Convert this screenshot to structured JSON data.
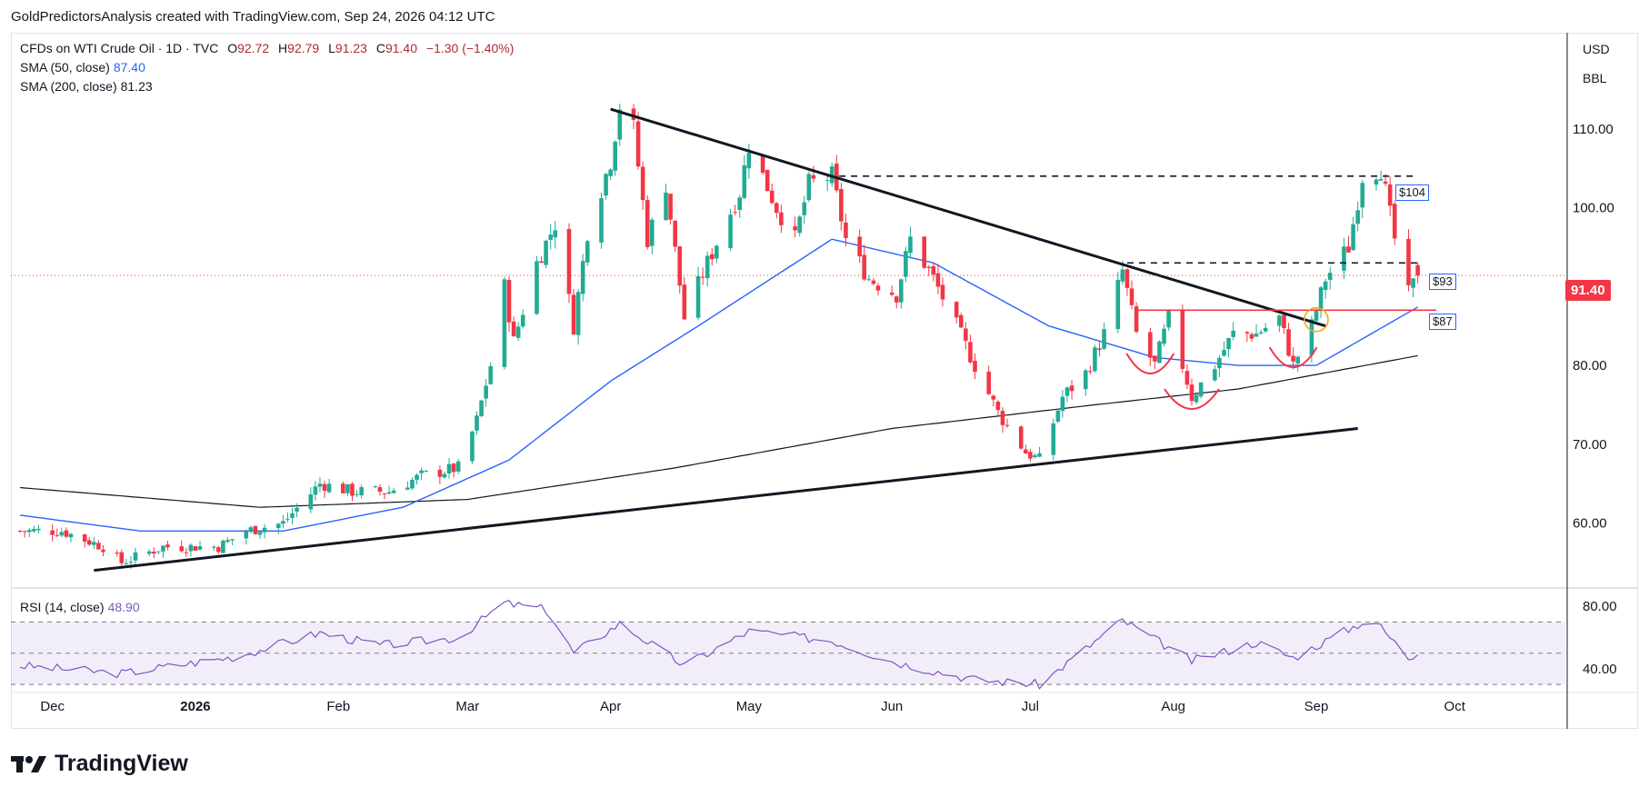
{
  "credit": "GoldPredictorsAnalysis created with TradingView.com, Sep 24, 2026 04:12 UTC",
  "legend": {
    "symbol": "CFDs on WTI Crude Oil · 1D · TVC",
    "o_label": "O",
    "o": "92.72",
    "h_label": "H",
    "h": "92.79",
    "l_label": "L",
    "l": "91.23",
    "c_label": "C",
    "c": "91.40",
    "change": "−1.30 (−1.40%)",
    "sma50_label": "SMA (50, close)",
    "sma50": "87.40",
    "sma200_label": "SMA (200, close)",
    "sma200": "81.23",
    "rsi_label": "RSI (14, close)",
    "rsi": "48.90"
  },
  "price_scale": {
    "currency": "USD",
    "unit": "BBL",
    "last_price": "91.40"
  },
  "tags": {
    "t104": "$104",
    "t93": "$93",
    "t87": "$87"
  },
  "brand": "TradingView",
  "colors": {
    "up": "#22ab94",
    "down": "#f23645",
    "sma50": "#2962ff",
    "sma200": "#131722",
    "rsi": "#7e57c2",
    "annotation": "#f23645"
  },
  "chart_data": [
    {
      "type": "candlestick",
      "title": "CFDs on WTI Crude Oil · 1D · TVC",
      "x_labels": [
        "Dec",
        "2026",
        "Feb",
        "Mar",
        "Apr",
        "May",
        "Jun",
        "Jul",
        "Aug",
        "Sep",
        "Oct"
      ],
      "y_ticks": [
        60,
        70,
        80,
        90,
        100,
        110
      ],
      "ylim": [
        52,
        120
      ],
      "grid": false,
      "keypoints_close": [
        {
          "x": "2025-11-24",
          "y": 59
        },
        {
          "x": "2025-12-03",
          "y": 59
        },
        {
          "x": "2025-12-12",
          "y": 57
        },
        {
          "x": "2025-12-16",
          "y": 55
        },
        {
          "x": "2025-12-25",
          "y": 57
        },
        {
          "x": "2026-01-06",
          "y": 57
        },
        {
          "x": "2026-01-12",
          "y": 59
        },
        {
          "x": "2026-01-20",
          "y": 60
        },
        {
          "x": "2026-01-28",
          "y": 65
        },
        {
          "x": "2026-02-04",
          "y": 64
        },
        {
          "x": "2026-02-12",
          "y": 64
        },
        {
          "x": "2026-02-19",
          "y": 66
        },
        {
          "x": "2026-02-27",
          "y": 67
        },
        {
          "x": "2026-03-03",
          "y": 73
        },
        {
          "x": "2026-03-06",
          "y": 80
        },
        {
          "x": "2026-03-09",
          "y": 90
        },
        {
          "x": "2026-03-11",
          "y": 83
        },
        {
          "x": "2026-03-16",
          "y": 93
        },
        {
          "x": "2026-03-20",
          "y": 98
        },
        {
          "x": "2026-03-24",
          "y": 85
        },
        {
          "x": "2026-03-27",
          "y": 97
        },
        {
          "x": "2026-04-01",
          "y": 106
        },
        {
          "x": "2026-04-03",
          "y": 113
        },
        {
          "x": "2026-04-06",
          "y": 110
        },
        {
          "x": "2026-04-09",
          "y": 96
        },
        {
          "x": "2026-04-13",
          "y": 103
        },
        {
          "x": "2026-04-17",
          "y": 86
        },
        {
          "x": "2026-04-22",
          "y": 93
        },
        {
          "x": "2026-04-29",
          "y": 102
        },
        {
          "x": "2026-05-01",
          "y": 108
        },
        {
          "x": "2026-05-07",
          "y": 100
        },
        {
          "x": "2026-05-11",
          "y": 96
        },
        {
          "x": "2026-05-14",
          "y": 103
        },
        {
          "x": "2026-05-19",
          "y": 104
        },
        {
          "x": "2026-05-22",
          "y": 96
        },
        {
          "x": "2026-05-27",
          "y": 91
        },
        {
          "x": "2026-06-02",
          "y": 89
        },
        {
          "x": "2026-06-05",
          "y": 96
        },
        {
          "x": "2026-06-10",
          "y": 91
        },
        {
          "x": "2026-06-15",
          "y": 85
        },
        {
          "x": "2026-06-19",
          "y": 80
        },
        {
          "x": "2026-06-24",
          "y": 74
        },
        {
          "x": "2026-06-30",
          "y": 69
        },
        {
          "x": "2026-07-03",
          "y": 68
        },
        {
          "x": "2026-07-08",
          "y": 76
        },
        {
          "x": "2026-07-13",
          "y": 79
        },
        {
          "x": "2026-07-17",
          "y": 84
        },
        {
          "x": "2026-07-21",
          "y": 92
        },
        {
          "x": "2026-07-24",
          "y": 84
        },
        {
          "x": "2026-07-28",
          "y": 80
        },
        {
          "x": "2026-07-31",
          "y": 86
        },
        {
          "x": "2026-08-05",
          "y": 76
        },
        {
          "x": "2026-08-10",
          "y": 80
        },
        {
          "x": "2026-08-14",
          "y": 84
        },
        {
          "x": "2026-08-19",
          "y": 84
        },
        {
          "x": "2026-08-24",
          "y": 86
        },
        {
          "x": "2026-08-27",
          "y": 80
        },
        {
          "x": "2026-08-31",
          "y": 85
        },
        {
          "x": "2026-09-03",
          "y": 91
        },
        {
          "x": "2026-09-08",
          "y": 95
        },
        {
          "x": "2026-09-11",
          "y": 104
        },
        {
          "x": "2026-09-15",
          "y": 105
        },
        {
          "x": "2026-09-18",
          "y": 96
        },
        {
          "x": "2026-09-21",
          "y": 89
        },
        {
          "x": "2026-09-23",
          "y": 91.4
        }
      ],
      "sma50_keypoints": [
        {
          "x": "2025-11-24",
          "y": 61
        },
        {
          "x": "2025-12-20",
          "y": 59
        },
        {
          "x": "2026-01-20",
          "y": 59
        },
        {
          "x": "2026-02-15",
          "y": 62
        },
        {
          "x": "2026-03-10",
          "y": 68
        },
        {
          "x": "2026-04-01",
          "y": 78
        },
        {
          "x": "2026-04-20",
          "y": 85
        },
        {
          "x": "2026-05-19",
          "y": 96
        },
        {
          "x": "2026-06-10",
          "y": 93
        },
        {
          "x": "2026-07-05",
          "y": 85
        },
        {
          "x": "2026-07-28",
          "y": 81
        },
        {
          "x": "2026-08-15",
          "y": 80
        },
        {
          "x": "2026-09-01",
          "y": 80
        },
        {
          "x": "2026-09-23",
          "y": 87.4
        }
      ],
      "sma200_keypoints": [
        {
          "x": "2025-11-24",
          "y": 64.5
        },
        {
          "x": "2026-01-15",
          "y": 62
        },
        {
          "x": "2026-03-01",
          "y": 63
        },
        {
          "x": "2026-04-15",
          "y": 67
        },
        {
          "x": "2026-06-01",
          "y": 72
        },
        {
          "x": "2026-07-15",
          "y": 75
        },
        {
          "x": "2026-08-15",
          "y": 77
        },
        {
          "x": "2026-09-23",
          "y": 81.23
        }
      ],
      "annotations": {
        "resistance_104": 104,
        "resistance_93": 93,
        "support_87": 87
      },
      "trendlines": [
        {
          "name": "descending",
          "from": {
            "x": "2026-04-01",
            "y": 112.5
          },
          "to": {
            "x": "2026-09-03",
            "y": 85
          }
        },
        {
          "name": "ascending",
          "from": {
            "x": "2025-12-10",
            "y": 54
          },
          "to": {
            "x": "2026-09-10",
            "y": 72
          }
        }
      ]
    },
    {
      "type": "line",
      "title": "RSI (14, close)",
      "y_ticks": [
        40,
        80
      ],
      "ylim": [
        26,
        90
      ],
      "bands": [
        30,
        70
      ],
      "keypoints": [
        {
          "x": "2025-11-24",
          "y": 42
        },
        {
          "x": "2025-12-16",
          "y": 37
        },
        {
          "x": "2026-01-10",
          "y": 48
        },
        {
          "x": "2026-01-28",
          "y": 63
        },
        {
          "x": "2026-02-10",
          "y": 55
        },
        {
          "x": "2026-02-27",
          "y": 60
        },
        {
          "x": "2026-03-09",
          "y": 82
        },
        {
          "x": "2026-03-18",
          "y": 78
        },
        {
          "x": "2026-03-24",
          "y": 50
        },
        {
          "x": "2026-04-03",
          "y": 69
        },
        {
          "x": "2026-04-17",
          "y": 42
        },
        {
          "x": "2026-05-01",
          "y": 64
        },
        {
          "x": "2026-05-19",
          "y": 58
        },
        {
          "x": "2026-06-02",
          "y": 44
        },
        {
          "x": "2026-06-19",
          "y": 33
        },
        {
          "x": "2026-07-03",
          "y": 30
        },
        {
          "x": "2026-07-21",
          "y": 71
        },
        {
          "x": "2026-08-05",
          "y": 45
        },
        {
          "x": "2026-08-19",
          "y": 57
        },
        {
          "x": "2026-08-27",
          "y": 47
        },
        {
          "x": "2026-09-13",
          "y": 73
        },
        {
          "x": "2026-09-21",
          "y": 47
        },
        {
          "x": "2026-09-23",
          "y": 48.9
        }
      ]
    }
  ]
}
